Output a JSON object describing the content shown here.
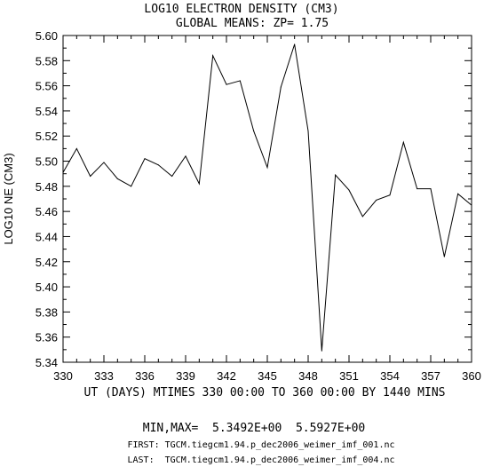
{
  "chart_data": {
    "type": "line",
    "title": "LOG10 ELECTRON DENSITY (CM3)",
    "subtitle": "GLOBAL MEANS: ZP=  1.75",
    "xlabel": "UT (DAYS) MTIMES 330 00:00 TO 360 00:00 BY 1440 MINS",
    "ylabel": "LOG10 NE (CM3)",
    "xlim": [
      330,
      360
    ],
    "ylim": [
      5.34,
      5.6
    ],
    "xticks": [
      "330",
      "333",
      "336",
      "339",
      "342",
      "345",
      "348",
      "351",
      "354",
      "357",
      "360"
    ],
    "yticks": [
      "5.34",
      "5.36",
      "5.38",
      "5.40",
      "5.42",
      "5.44",
      "5.46",
      "5.48",
      "5.50",
      "5.52",
      "5.54",
      "5.56",
      "5.58",
      "5.60"
    ],
    "grid": false,
    "line_color": "#000000",
    "x": [
      330,
      331,
      332,
      333,
      334,
      335,
      336,
      337,
      338,
      339,
      340,
      341,
      342,
      343,
      344,
      345,
      346,
      347,
      348,
      349,
      350,
      351,
      352,
      353,
      354,
      355,
      356,
      357,
      358,
      359,
      360
    ],
    "values": [
      5.491,
      5.51,
      5.488,
      5.499,
      5.486,
      5.48,
      5.502,
      5.497,
      5.488,
      5.504,
      5.482,
      5.584,
      5.561,
      5.564,
      5.524,
      5.495,
      5.559,
      5.593,
      5.524,
      5.349,
      5.489,
      5.477,
      5.456,
      5.469,
      5.473,
      5.515,
      5.478,
      5.478,
      5.424,
      5.474,
      5.465
    ]
  },
  "footer": {
    "minmax": "MIN,MAX=  5.3492E+00  5.5927E+00",
    "first": "FIRST: TGCM.tiegcm1.94.p_dec2006_weimer_imf_001.nc",
    "last": "LAST:  TGCM.tiegcm1.94.p_dec2006_weimer_imf_004.nc"
  }
}
